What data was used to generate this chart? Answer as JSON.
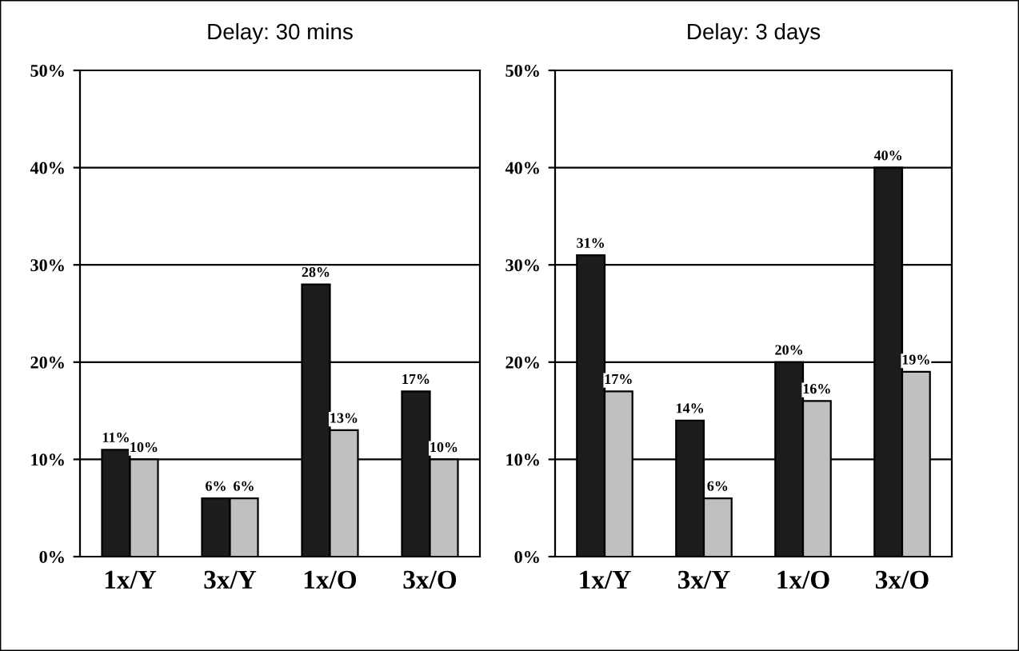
{
  "chart_data": [
    {
      "type": "bar",
      "title": "Delay: 30 mins",
      "categories": [
        "1x/Y",
        "3x/Y",
        "1x/O",
        "3x/O"
      ],
      "series": [
        {
          "color": "#1c1c1c",
          "values": [
            11,
            6,
            28,
            17
          ],
          "value_labels": [
            "11%",
            "6%",
            "28%",
            "17%"
          ]
        },
        {
          "color": "#c0c0c0",
          "values": [
            10,
            6,
            13,
            10
          ],
          "value_labels": [
            "10%",
            "6%",
            "13%",
            "10%"
          ]
        }
      ],
      "ylim": [
        0,
        50
      ],
      "yticks": [
        {
          "value": 0,
          "label": "0%"
        },
        {
          "value": 10,
          "label": "10%"
        },
        {
          "value": 20,
          "label": "20%"
        },
        {
          "value": 30,
          "label": "30%"
        },
        {
          "value": 40,
          "label": "40%"
        },
        {
          "value": 50,
          "label": "50%"
        }
      ],
      "grid": "y"
    },
    {
      "type": "bar",
      "title": "Delay: 3 days",
      "categories": [
        "1x/Y",
        "3x/Y",
        "1x/O",
        "3x/O"
      ],
      "series": [
        {
          "color": "#1c1c1c",
          "values": [
            31,
            14,
            20,
            40
          ],
          "value_labels": [
            "31%",
            "14%",
            "20%",
            "40%"
          ]
        },
        {
          "color": "#c0c0c0",
          "values": [
            17,
            6,
            16,
            19
          ],
          "value_labels": [
            "17%",
            "6%",
            "16%",
            "19%"
          ]
        }
      ],
      "ylim": [
        0,
        50
      ],
      "yticks": [
        {
          "value": 0,
          "label": "0%"
        },
        {
          "value": 10,
          "label": "10%"
        },
        {
          "value": 20,
          "label": "20%"
        },
        {
          "value": 30,
          "label": "30%"
        },
        {
          "value": 40,
          "label": "40%"
        },
        {
          "value": 50,
          "label": "50%"
        }
      ],
      "grid": "y"
    }
  ]
}
